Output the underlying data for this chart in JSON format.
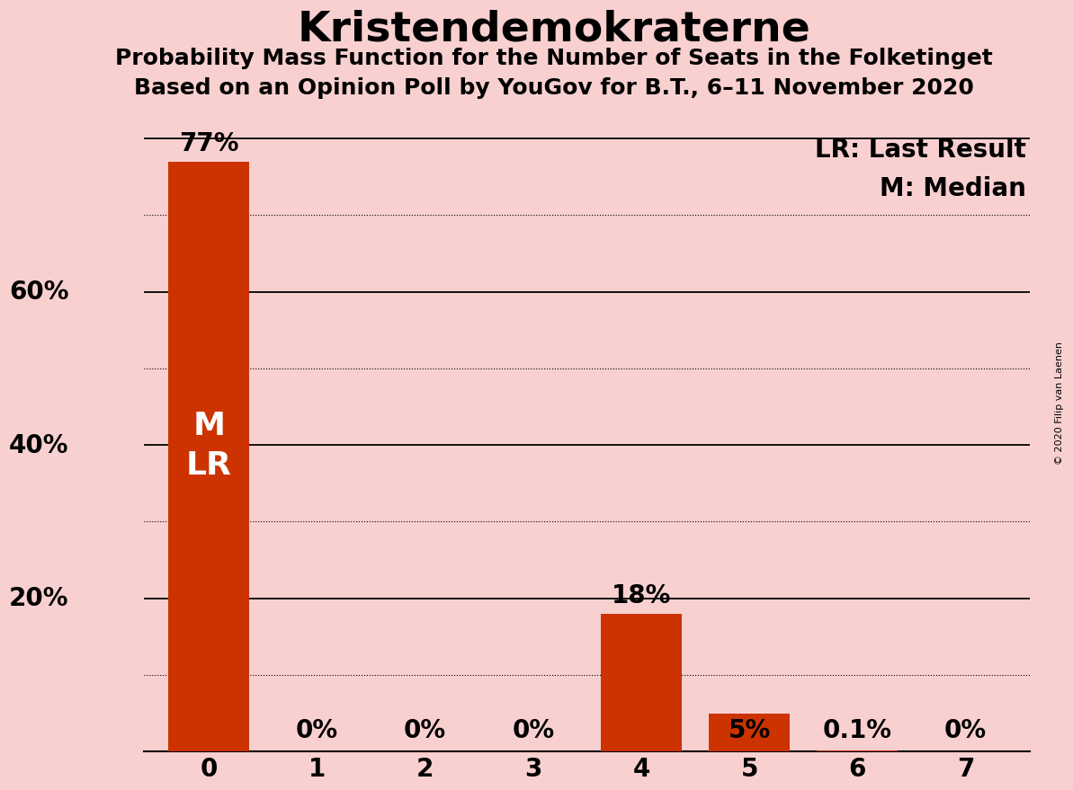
{
  "title": "Kristendemokraterne",
  "subtitle1": "Probability Mass Function for the Number of Seats in the Folketinget",
  "subtitle2": "Based on an Opinion Poll by YouGov for B.T., 6–11 November 2020",
  "copyright_text": "© 2020 Filip van Laenen",
  "legend_lr": "LR: Last Result",
  "legend_m": "M: Median",
  "categories": [
    0,
    1,
    2,
    3,
    4,
    5,
    6,
    7
  ],
  "values": [
    0.77,
    0.0,
    0.0,
    0.0,
    0.18,
    0.05,
    0.001,
    0.0
  ],
  "bar_labels": [
    "77%",
    "0%",
    "0%",
    "0%",
    "18%",
    "5%",
    "0.1%",
    "0%"
  ],
  "bar_color": "#cc3300",
  "background_color": "#f9d0d0",
  "ylim_max": 0.84,
  "major_yticks": [
    0.2,
    0.4,
    0.6,
    0.8
  ],
  "minor_yticks": [
    0.1,
    0.3,
    0.5,
    0.7
  ],
  "ylabel_vals": [
    0.2,
    0.4,
    0.6
  ],
  "ylabel_labels": [
    "20%",
    "40%",
    "60%"
  ],
  "bar_label_fontsize": 20,
  "title_fontsize": 34,
  "subtitle_fontsize": 18,
  "axis_tick_fontsize": 20,
  "legend_fontsize": 20,
  "ml_fontsize": 26,
  "label_inside_threshold": 0.1
}
